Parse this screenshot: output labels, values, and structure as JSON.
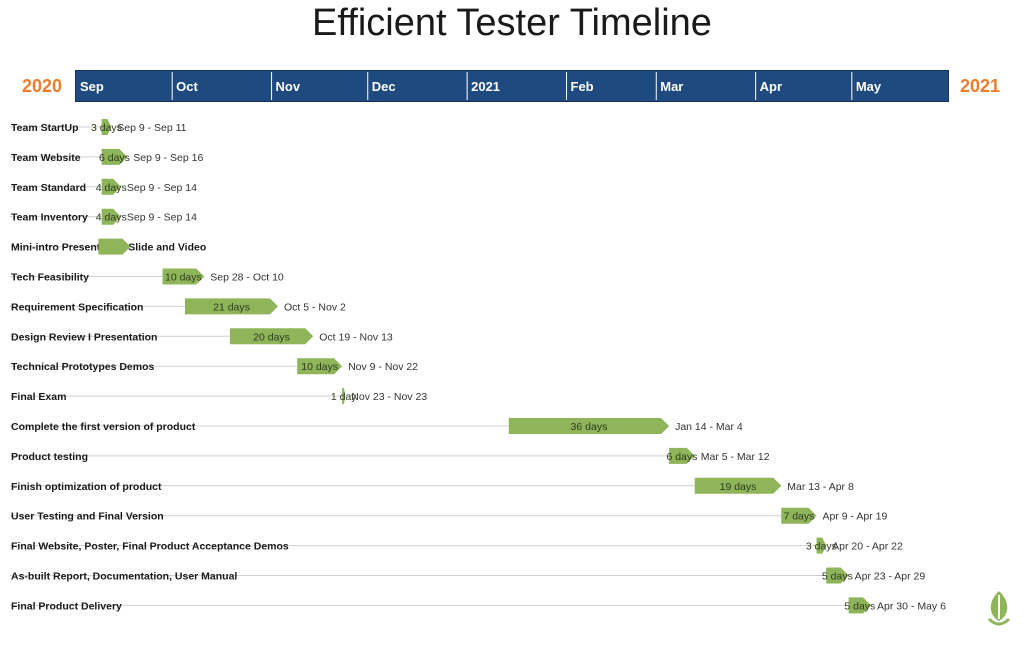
{
  "chart_data": {
    "type": "gantt",
    "title": "Efficient Tester Timeline",
    "start_year_label": "2020",
    "end_year_label": "2021",
    "axis_start": "2020-09-01",
    "axis_end": "2021-05-31",
    "months": [
      "Sep",
      "Oct",
      "Nov",
      "Dec",
      "2021",
      "Feb",
      "Mar",
      "Apr",
      "May"
    ],
    "colors": {
      "bar": "#8fb55a",
      "band": "#1f4a80",
      "year": "#ee7d2b",
      "leader": "#cfcfcf"
    },
    "tasks": [
      {
        "name": "Team StartUp",
        "start": "2020-09-09",
        "end": "2020-09-11",
        "duration": "3 days",
        "range": "Sep 9 - Sep 11"
      },
      {
        "name": "Team Website",
        "start": "2020-09-09",
        "end": "2020-09-16",
        "duration": "6 days",
        "range": "Sep 9 - Sep 16"
      },
      {
        "name": "Team Standard",
        "start": "2020-09-09",
        "end": "2020-09-14",
        "duration": "4 days",
        "range": "Sep 9 - Sep 14"
      },
      {
        "name": "Team Inventory",
        "start": "2020-09-09",
        "end": "2020-09-14",
        "duration": "4 days",
        "range": "Sep 9 - Sep 14"
      },
      {
        "name": "Mini-intro Presentation Slide and Video",
        "start": "2020-09-08",
        "end": "2020-09-17",
        "duration": "",
        "range": ""
      },
      {
        "name": "Tech Feasibility",
        "start": "2020-09-28",
        "end": "2020-10-10",
        "duration": "10 days",
        "range": "Sep 28 - Oct 10"
      },
      {
        "name": "Requirement Specification",
        "start": "2020-10-05",
        "end": "2020-11-02",
        "duration": "21 days",
        "range": "Oct 5 - Nov 2"
      },
      {
        "name": "Design Review I Presentation",
        "start": "2020-10-19",
        "end": "2020-11-13",
        "duration": "20 days",
        "range": "Oct 19 - Nov 13"
      },
      {
        "name": "Technical Prototypes Demos",
        "start": "2020-11-09",
        "end": "2020-11-22",
        "duration": "10 days",
        "range": "Nov 9 - Nov 22"
      },
      {
        "name": "Final Exam",
        "start": "2020-11-23",
        "end": "2020-11-23",
        "duration": "1 day",
        "range": "Nov 23 - Nov 23"
      },
      {
        "name": "Complete the first version of product",
        "start": "2021-01-14",
        "end": "2021-03-04",
        "duration": "36 days",
        "range": "Jan 14 - Mar 4"
      },
      {
        "name": "Product testing",
        "start": "2021-03-05",
        "end": "2021-03-12",
        "duration": "6 days",
        "range": "Mar 5 - Mar 12"
      },
      {
        "name": "Finish optimization of product",
        "start": "2021-03-13",
        "end": "2021-04-08",
        "duration": "19 days",
        "range": "Mar 13 - Apr 8"
      },
      {
        "name": "User Testing and Final Version",
        "start": "2021-04-09",
        "end": "2021-04-19",
        "duration": "7 days",
        "range": "Apr 9 - Apr 19"
      },
      {
        "name": "Final Website, Poster, Final Product Acceptance Demos",
        "start": "2021-04-20",
        "end": "2021-04-22",
        "duration": "3 days",
        "range": "Apr 20 - Apr 22"
      },
      {
        "name": "As-built Report, Documentation, User Manual",
        "start": "2021-04-23",
        "end": "2021-04-29",
        "duration": "5 days",
        "range": "Apr 23 - Apr 29"
      },
      {
        "name": "Final Product Delivery",
        "start": "2021-04-30",
        "end": "2021-05-06",
        "duration": "5 days",
        "range": "Apr 30 - May 6"
      }
    ]
  }
}
